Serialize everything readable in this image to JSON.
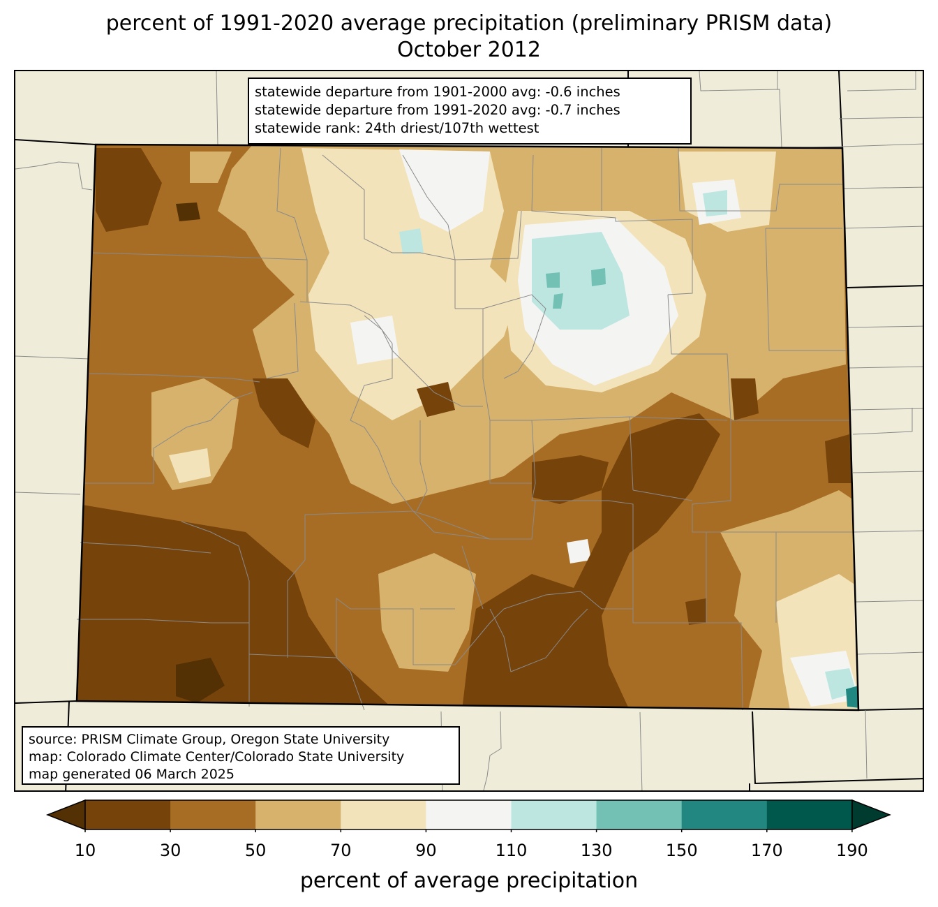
{
  "title": {
    "line1": "percent of 1991-2020 average precipitation (preliminary PRISM data)",
    "line2": "October 2012"
  },
  "stats": {
    "line1": "statewide departure from 1901-2000 avg: -0.6 inches",
    "line2": "statewide departure from 1991-2020 avg: -0.7 inches",
    "line3": "statewide rank: 24th driest/107th wettest"
  },
  "source": {
    "line1": "source: PRISM Climate Group, Oregon State University",
    "line2": "map: Colorado Climate Center/Colorado State University",
    "line3": "map generated 06 March 2025"
  },
  "colorbar": {
    "label": "percent of average precipitation",
    "ticks": [
      "10",
      "30",
      "50",
      "70",
      "90",
      "110",
      "130",
      "150",
      "170",
      "190"
    ],
    "bins": [
      {
        "range": "<10",
        "color": "#543005"
      },
      {
        "range": "10-30",
        "color": "#76430b"
      },
      {
        "range": "30-50",
        "color": "#a86d24"
      },
      {
        "range": "50-70",
        "color": "#d7b26c"
      },
      {
        "range": "70-90",
        "color": "#f3e3bb"
      },
      {
        "range": "90-110",
        "color": "#f4f5f3"
      },
      {
        "range": "110-130",
        "color": "#bde6e1"
      },
      {
        "range": "130-150",
        "color": "#72c1b4"
      },
      {
        "range": "150-170",
        "color": "#228780"
      },
      {
        "range": "170-190",
        "color": "#00574b"
      },
      {
        "range": ">190",
        "color": "#003b2f"
      }
    ]
  },
  "map_colors": {
    "background": "#efedd9",
    "state_border": "#000000",
    "county_border": "#8a8a8a"
  }
}
